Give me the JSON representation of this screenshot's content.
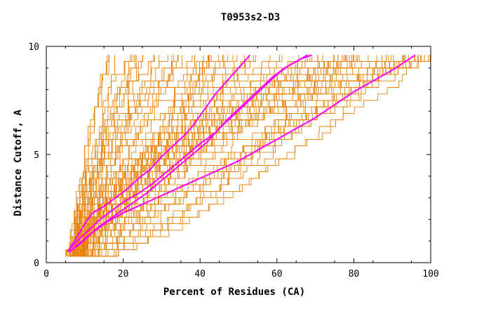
{
  "chart_data": {
    "type": "line",
    "title": "T0953s2-D3",
    "xlabel": "Percent of Residues (CA)",
    "ylabel": "Distance Cutoff, A",
    "xlim": [
      0,
      100
    ],
    "ylim": [
      0,
      10
    ],
    "x_ticks": [
      0,
      20,
      40,
      60,
      80,
      100
    ],
    "y_ticks": [
      0,
      5,
      10
    ],
    "grid": false,
    "colors": {
      "models": "#e8820a",
      "highlight": "#ff00ff",
      "frame": "#000000"
    },
    "highlighted_series": [
      {
        "name": "highlight-1",
        "points": [
          [
            5.5,
            0.5
          ],
          [
            8,
            1.2
          ],
          [
            10,
            1.8
          ],
          [
            12,
            2.3
          ],
          [
            15,
            2.6
          ],
          [
            18,
            3.0
          ],
          [
            21,
            3.4
          ],
          [
            24,
            3.9
          ],
          [
            27,
            4.3
          ],
          [
            30,
            4.9
          ],
          [
            33,
            5.4
          ],
          [
            36,
            5.9
          ],
          [
            38,
            6.3
          ],
          [
            40,
            6.8
          ],
          [
            42,
            7.3
          ],
          [
            44,
            7.8
          ],
          [
            46,
            8.2
          ],
          [
            48,
            8.6
          ],
          [
            50,
            9.0
          ],
          [
            53,
            9.6
          ]
        ]
      },
      {
        "name": "highlight-2",
        "points": [
          [
            5.5,
            0.5
          ],
          [
            8,
            1.0
          ],
          [
            11,
            1.5
          ],
          [
            14,
            2.0
          ],
          [
            17,
            2.4
          ],
          [
            20,
            2.8
          ],
          [
            24,
            3.2
          ],
          [
            28,
            3.7
          ],
          [
            32,
            4.3
          ],
          [
            36,
            4.9
          ],
          [
            40,
            5.5
          ],
          [
            44,
            6.0
          ],
          [
            47,
            6.6
          ],
          [
            50,
            7.1
          ],
          [
            53,
            7.6
          ],
          [
            56,
            8.1
          ],
          [
            59,
            8.6
          ],
          [
            62,
            9.0
          ],
          [
            65,
            9.3
          ],
          [
            68,
            9.6
          ]
        ]
      },
      {
        "name": "highlight-3",
        "points": [
          [
            6,
            0.5
          ],
          [
            9,
            0.9
          ],
          [
            12,
            1.4
          ],
          [
            16,
            1.9
          ],
          [
            20,
            2.3
          ],
          [
            25,
            2.7
          ],
          [
            30,
            3.1
          ],
          [
            35,
            3.5
          ],
          [
            40,
            3.9
          ],
          [
            45,
            4.3
          ],
          [
            50,
            4.7
          ],
          [
            55,
            5.2
          ],
          [
            60,
            5.7
          ],
          [
            65,
            6.2
          ],
          [
            70,
            6.7
          ],
          [
            75,
            7.3
          ],
          [
            80,
            7.9
          ],
          [
            85,
            8.4
          ],
          [
            90,
            8.9
          ],
          [
            96,
            9.6
          ]
        ]
      },
      {
        "name": "highlight-4",
        "points": [
          [
            6,
            0.5
          ],
          [
            10,
            1.1
          ],
          [
            14,
            1.7
          ],
          [
            18,
            2.2
          ],
          [
            22,
            2.7
          ],
          [
            26,
            3.2
          ],
          [
            30,
            3.8
          ],
          [
            34,
            4.4
          ],
          [
            38,
            5.0
          ],
          [
            42,
            5.6
          ],
          [
            45,
            6.2
          ],
          [
            48,
            6.7
          ],
          [
            51,
            7.2
          ],
          [
            54,
            7.7
          ],
          [
            57,
            8.2
          ],
          [
            60,
            8.7
          ],
          [
            63,
            9.1
          ],
          [
            66,
            9.4
          ],
          [
            69,
            9.6
          ]
        ]
      }
    ],
    "model_series_count": 90
  }
}
